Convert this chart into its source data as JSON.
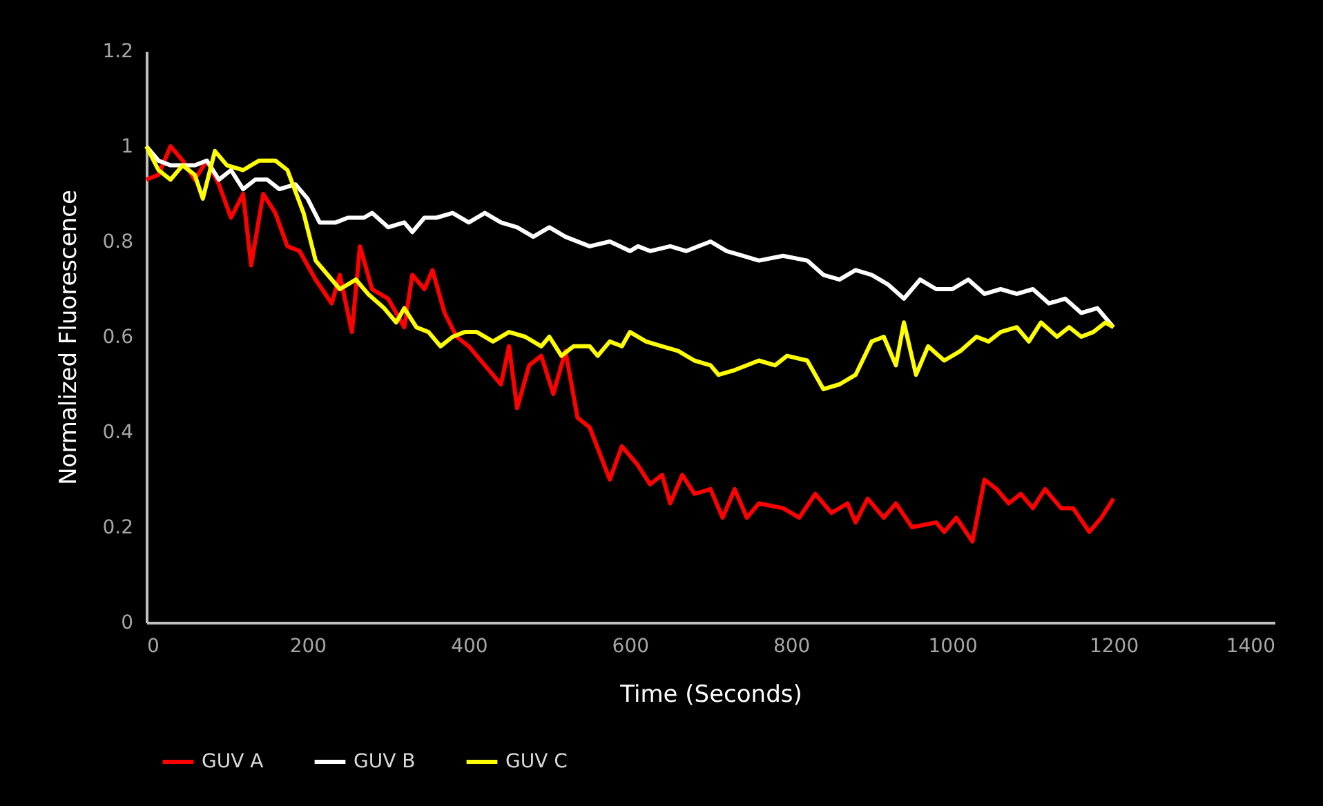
{
  "chart_data": {
    "type": "line",
    "xlabel": "Time (Seconds)",
    "ylabel": "Normalized Fluorescence",
    "xlim": [
      0,
      1400
    ],
    "xticks": [
      0,
      200,
      400,
      600,
      800,
      1000,
      1200,
      1400
    ],
    "ylim": [
      0,
      1.2
    ],
    "yticks": [
      0,
      0.2,
      0.4,
      0.6,
      0.8,
      1,
      1.2
    ],
    "grid": false,
    "legend": "bottom",
    "marker": "none",
    "line_style": "solid",
    "series": [
      {
        "name": "GUV A",
        "color": "#ff0000",
        "x": [
          0,
          15,
          30,
          45,
          60,
          75,
          90,
          105,
          120,
          130,
          145,
          160,
          175,
          190,
          210,
          230,
          240,
          255,
          265,
          280,
          300,
          320,
          330,
          345,
          355,
          370,
          385,
          400,
          420,
          440,
          450,
          460,
          475,
          490,
          505,
          520,
          535,
          550,
          575,
          590,
          610,
          625,
          640,
          650,
          665,
          680,
          700,
          715,
          730,
          745,
          760,
          790,
          810,
          830,
          850,
          870,
          880,
          895,
          915,
          930,
          950,
          980,
          990,
          1005,
          1025,
          1040,
          1055,
          1070,
          1085,
          1100,
          1115,
          1135,
          1150,
          1170,
          1185,
          1200
        ],
        "values": [
          0.93,
          0.94,
          1.0,
          0.97,
          0.93,
          0.97,
          0.92,
          0.85,
          0.9,
          0.75,
          0.9,
          0.86,
          0.79,
          0.78,
          0.72,
          0.67,
          0.73,
          0.61,
          0.79,
          0.7,
          0.68,
          0.62,
          0.73,
          0.7,
          0.74,
          0.65,
          0.6,
          0.58,
          0.54,
          0.5,
          0.58,
          0.45,
          0.54,
          0.56,
          0.48,
          0.57,
          0.43,
          0.41,
          0.3,
          0.37,
          0.33,
          0.29,
          0.31,
          0.25,
          0.31,
          0.27,
          0.28,
          0.22,
          0.28,
          0.22,
          0.25,
          0.24,
          0.22,
          0.27,
          0.23,
          0.25,
          0.21,
          0.26,
          0.22,
          0.25,
          0.2,
          0.21,
          0.19,
          0.22,
          0.17,
          0.3,
          0.28,
          0.25,
          0.27,
          0.24,
          0.28,
          0.24,
          0.24,
          0.19,
          0.22,
          0.26
        ]
      },
      {
        "name": "GUV B",
        "color": "#ffffff",
        "x": [
          0,
          15,
          30,
          60,
          75,
          90,
          105,
          120,
          135,
          150,
          165,
          185,
          200,
          215,
          235,
          250,
          270,
          280,
          300,
          320,
          330,
          345,
          360,
          380,
          400,
          420,
          440,
          460,
          480,
          500,
          520,
          550,
          575,
          600,
          610,
          625,
          650,
          670,
          700,
          720,
          740,
          760,
          790,
          820,
          840,
          860,
          880,
          900,
          920,
          940,
          960,
          980,
          1000,
          1020,
          1040,
          1060,
          1080,
          1100,
          1120,
          1140,
          1160,
          1180,
          1200
        ],
        "values": [
          1.0,
          0.97,
          0.96,
          0.96,
          0.97,
          0.93,
          0.95,
          0.91,
          0.93,
          0.93,
          0.91,
          0.92,
          0.89,
          0.84,
          0.84,
          0.85,
          0.85,
          0.86,
          0.83,
          0.84,
          0.82,
          0.85,
          0.85,
          0.86,
          0.84,
          0.86,
          0.84,
          0.83,
          0.81,
          0.83,
          0.81,
          0.79,
          0.8,
          0.78,
          0.79,
          0.78,
          0.79,
          0.78,
          0.8,
          0.78,
          0.77,
          0.76,
          0.77,
          0.76,
          0.73,
          0.72,
          0.74,
          0.73,
          0.71,
          0.68,
          0.72,
          0.7,
          0.7,
          0.72,
          0.69,
          0.7,
          0.69,
          0.7,
          0.67,
          0.68,
          0.65,
          0.66,
          0.62
        ]
      },
      {
        "name": "GUV C",
        "color": "#ffff00",
        "x": [
          0,
          15,
          30,
          45,
          60,
          70,
          85,
          100,
          120,
          140,
          160,
          175,
          195,
          210,
          225,
          240,
          260,
          275,
          295,
          310,
          320,
          335,
          350,
          365,
          380,
          395,
          410,
          430,
          450,
          470,
          490,
          500,
          515,
          530,
          550,
          560,
          575,
          590,
          600,
          620,
          640,
          660,
          680,
          700,
          710,
          730,
          760,
          780,
          795,
          820,
          840,
          860,
          880,
          900,
          915,
          930,
          940,
          955,
          970,
          990,
          1010,
          1030,
          1045,
          1060,
          1080,
          1095,
          1110,
          1130,
          1145,
          1160,
          1175,
          1190,
          1200
        ],
        "values": [
          1.0,
          0.95,
          0.93,
          0.96,
          0.94,
          0.89,
          0.99,
          0.96,
          0.95,
          0.97,
          0.97,
          0.95,
          0.86,
          0.76,
          0.73,
          0.7,
          0.72,
          0.69,
          0.66,
          0.63,
          0.66,
          0.62,
          0.61,
          0.58,
          0.6,
          0.61,
          0.61,
          0.59,
          0.61,
          0.6,
          0.58,
          0.6,
          0.56,
          0.58,
          0.58,
          0.56,
          0.59,
          0.58,
          0.61,
          0.59,
          0.58,
          0.57,
          0.55,
          0.54,
          0.52,
          0.53,
          0.55,
          0.54,
          0.56,
          0.55,
          0.49,
          0.5,
          0.52,
          0.59,
          0.6,
          0.54,
          0.63,
          0.52,
          0.58,
          0.55,
          0.57,
          0.6,
          0.59,
          0.61,
          0.62,
          0.59,
          0.63,
          0.6,
          0.62,
          0.6,
          0.61,
          0.63,
          0.62
        ]
      }
    ]
  }
}
